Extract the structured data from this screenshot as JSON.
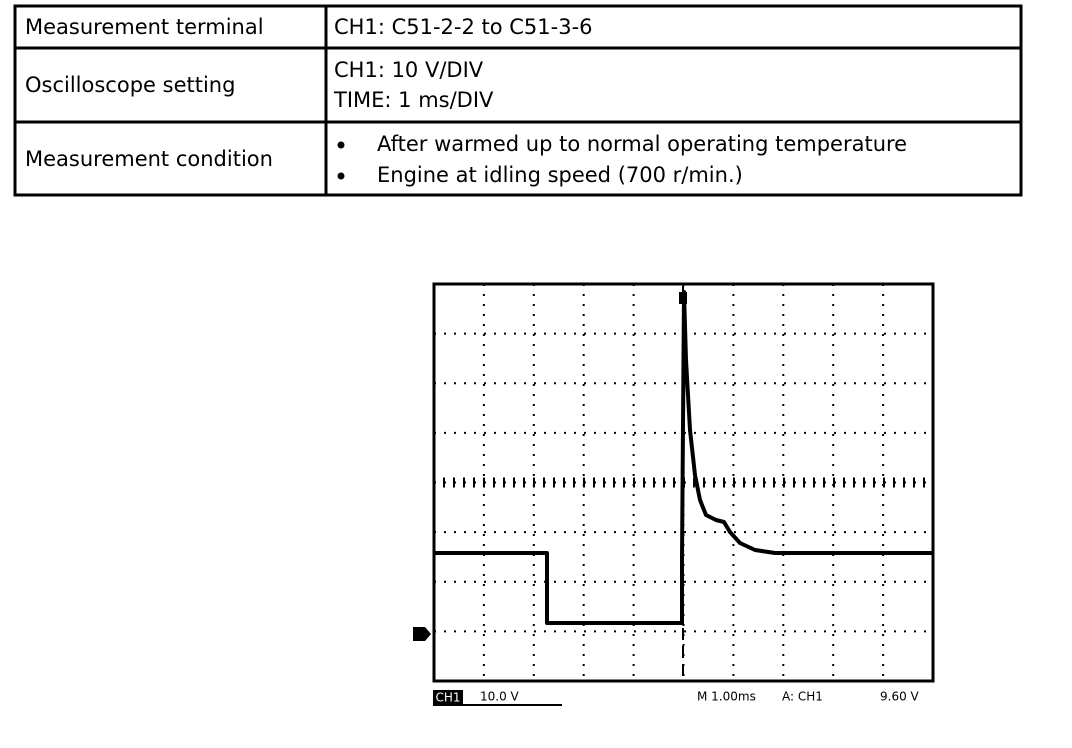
{
  "table": {
    "rows": [
      {
        "label": "Measurement terminal",
        "lines": [
          "CH1: C51-2-2 to C51-3-6"
        ]
      },
      {
        "label": "Oscilloscope setting",
        "lines": [
          "CH1: 10 V/DIV",
          "TIME: 1 ms/DIV"
        ]
      },
      {
        "label": "Measurement condition",
        "bullets": [
          "After warmed up to normal operating temperature",
          "Engine at idling speed (700 r/min.)"
        ]
      }
    ]
  },
  "oscilloscope": {
    "channel": "CH1",
    "scale": "10.0 V",
    "timebase": "M 1.00ms",
    "trigger_source": "A: CH1",
    "trigger_level": "9.60 V"
  }
}
